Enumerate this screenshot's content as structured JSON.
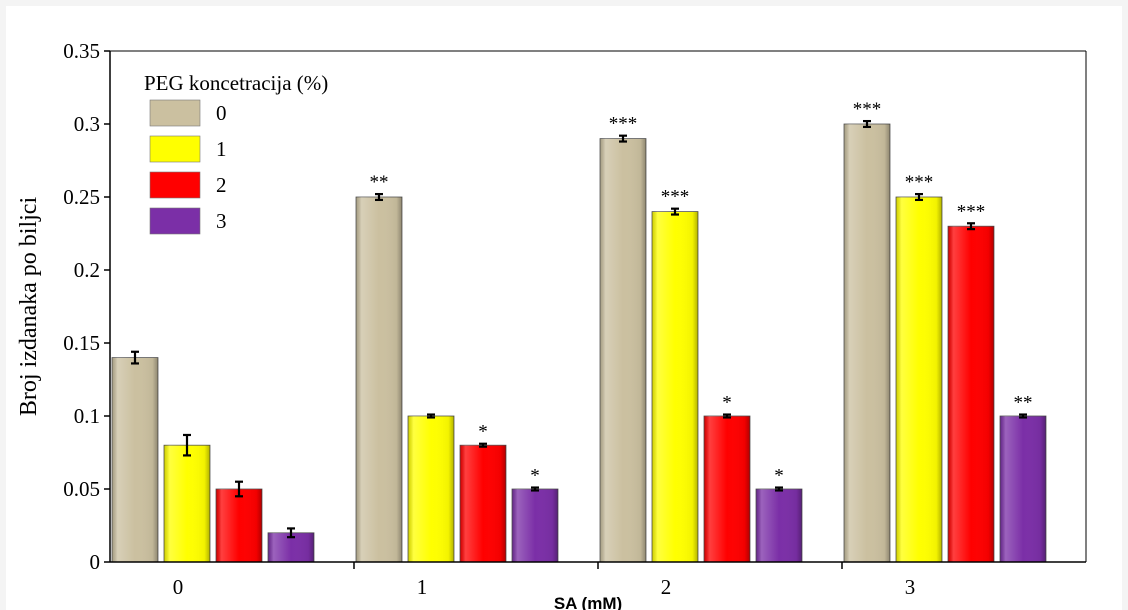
{
  "chart_data": {
    "type": "bar",
    "categories": [
      "0",
      "1",
      "2",
      "3"
    ],
    "series": [
      {
        "name": "0",
        "color": "#cbc0a0",
        "values": [
          0.14,
          0.25,
          0.29,
          0.3
        ],
        "errors": [
          0.004,
          0.002,
          0.002,
          0.002
        ],
        "annotations": [
          "",
          "**",
          "***",
          "***"
        ]
      },
      {
        "name": "1",
        "color": "#ffff00",
        "values": [
          0.08,
          0.1,
          0.24,
          0.25
        ],
        "errors": [
          0.007,
          0.001,
          0.002,
          0.002
        ],
        "annotations": [
          "",
          "",
          "***",
          "***"
        ]
      },
      {
        "name": "2",
        "color": "#ff0000",
        "values": [
          0.05,
          0.08,
          0.1,
          0.23
        ],
        "errors": [
          0.005,
          0.001,
          0.001,
          0.002
        ],
        "annotations": [
          "",
          "*",
          "*",
          "***"
        ]
      },
      {
        "name": "3",
        "color": "#7b2fa7",
        "values": [
          0.02,
          0.05,
          0.05,
          0.1
        ],
        "errors": [
          0.003,
          0.001,
          0.001,
          0.001
        ],
        "annotations": [
          "",
          "*",
          "*",
          "**"
        ]
      }
    ],
    "title": "",
    "xlabel": "SA (mM)",
    "ylabel": "Broj izdanaka po biljci",
    "ylim": [
      0,
      0.35
    ],
    "yticks": [
      "0",
      "0.05",
      "0.1",
      "0.15",
      "0.2",
      "0.25",
      "0.3",
      "0.35"
    ],
    "legend": {
      "title": "PEG koncetracija (%)",
      "placement": "top-left"
    },
    "grid": false
  }
}
